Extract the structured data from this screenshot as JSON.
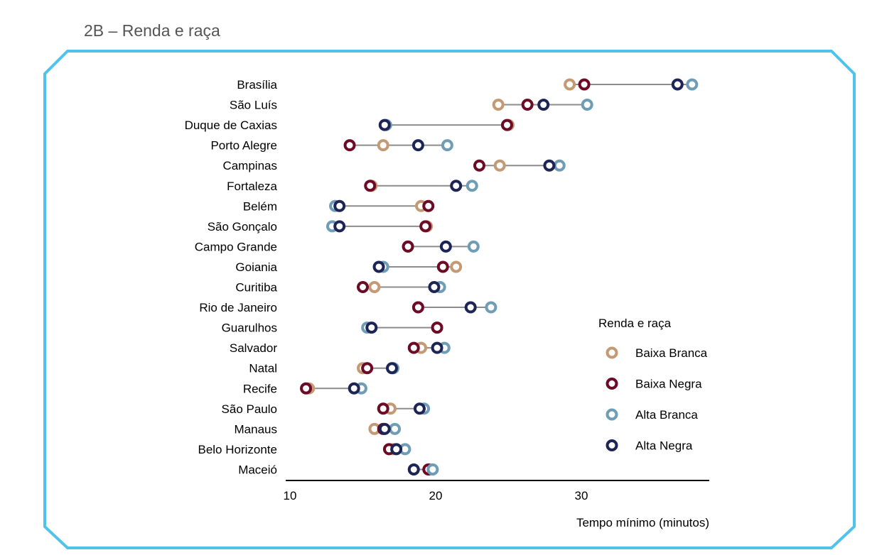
{
  "section_title": "2B – Renda e raça",
  "colors": {
    "frame": "#4fc3ea",
    "connector": "#8c8c8c",
    "axis": "#000000",
    "point_fill": "#ffffff"
  },
  "chart_data": {
    "type": "dot-range",
    "title": "",
    "xlabel": "Tempo mínimo (minutos)",
    "ylabel": "",
    "xlim": [
      10,
      39
    ],
    "xticks": [
      10,
      20,
      30
    ],
    "grid": false,
    "legend": {
      "title": "Renda e raça",
      "position": "right"
    },
    "categories": [
      "Brasília",
      "São Luís",
      "Duque de Caxias",
      "Porto Alegre",
      "Campinas",
      "Fortaleza",
      "Belém",
      "São Gonçalo",
      "Campo Grande",
      "Goiania",
      "Curitiba",
      "Rio de Janeiro",
      "Guarulhos",
      "Salvador",
      "Natal",
      "Recife",
      "São Paulo",
      "Manaus",
      "Belo Horizonte",
      "Maceió"
    ],
    "series": [
      {
        "name": "Baixa Branca",
        "color": "#c39a74",
        "values": [
          29.2,
          24.3,
          25.0,
          16.4,
          24.4,
          15.6,
          19.0,
          19.4,
          18.1,
          21.4,
          15.8,
          18.8,
          20.1,
          19.0,
          15.0,
          11.3,
          16.9,
          15.8,
          17.1,
          19.6
        ]
      },
      {
        "name": "Baixa Negra",
        "color": "#6d0a26",
        "values": [
          30.2,
          26.3,
          24.9,
          14.1,
          23.0,
          15.5,
          19.5,
          19.3,
          18.1,
          20.5,
          15.0,
          18.8,
          20.1,
          18.5,
          15.3,
          11.1,
          16.4,
          16.4,
          16.8,
          19.5
        ]
      },
      {
        "name": "Alta Branca",
        "color": "#6e9db5",
        "values": [
          37.6,
          30.4,
          16.6,
          20.8,
          28.5,
          22.5,
          13.1,
          12.9,
          22.6,
          16.4,
          20.3,
          23.8,
          15.3,
          20.6,
          17.1,
          14.9,
          19.2,
          17.2,
          17.9,
          19.8
        ]
      },
      {
        "name": "Alta Negra",
        "color": "#1c2555",
        "values": [
          36.6,
          27.4,
          16.5,
          18.8,
          27.8,
          21.4,
          13.4,
          13.4,
          20.7,
          16.1,
          19.9,
          22.4,
          15.6,
          20.1,
          17.0,
          14.4,
          18.9,
          16.5,
          17.3,
          18.5
        ]
      }
    ]
  }
}
